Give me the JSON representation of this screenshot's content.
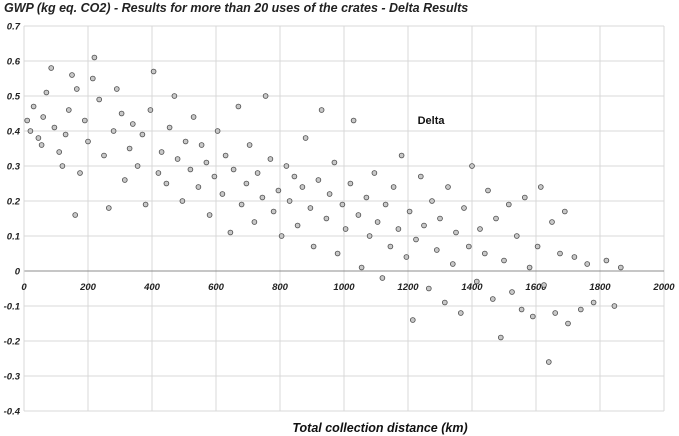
{
  "chart_data": {
    "type": "scatter",
    "title": "GWP (kg eq. CO2)  -  Results for more than 20 uses of the crates - Delta Results",
    "xlabel": "Total collection distance (km)",
    "ylabel": "",
    "xlim": [
      0,
      2000
    ],
    "ylim": [
      -0.4,
      0.7
    ],
    "x_ticks": [
      "0",
      "200",
      "400",
      "600",
      "800",
      "1000",
      "1200",
      "1400",
      "1600",
      "1800",
      "2000"
    ],
    "y_ticks": [
      "0.7",
      "0.6",
      "0.5",
      "0.4",
      "0.3",
      "0.2",
      "0.1",
      "0",
      "-0.1",
      "-0.2",
      "-0.3",
      "-0.4"
    ],
    "grid": true,
    "annotation": {
      "text": "Delta",
      "x": 1230,
      "y": 0.42
    },
    "marker": {
      "shape": "circle",
      "fill": "#c8c8c8",
      "stroke": "#4a4a4a"
    },
    "series": [
      {
        "points": [
          [
            10,
            0.43
          ],
          [
            20,
            0.4
          ],
          [
            30,
            0.47
          ],
          [
            45,
            0.38
          ],
          [
            55,
            0.36
          ],
          [
            60,
            0.44
          ],
          [
            70,
            0.51
          ],
          [
            85,
            0.58
          ],
          [
            95,
            0.41
          ],
          [
            110,
            0.34
          ],
          [
            120,
            0.3
          ],
          [
            130,
            0.39
          ],
          [
            140,
            0.46
          ],
          [
            150,
            0.56
          ],
          [
            160,
            0.16
          ],
          [
            165,
            0.52
          ],
          [
            175,
            0.28
          ],
          [
            190,
            0.43
          ],
          [
            200,
            0.37
          ],
          [
            215,
            0.55
          ],
          [
            220,
            0.61
          ],
          [
            235,
            0.49
          ],
          [
            250,
            0.33
          ],
          [
            265,
            0.18
          ],
          [
            280,
            0.4
          ],
          [
            290,
            0.52
          ],
          [
            305,
            0.45
          ],
          [
            315,
            0.26
          ],
          [
            330,
            0.35
          ],
          [
            340,
            0.42
          ],
          [
            355,
            0.3
          ],
          [
            370,
            0.39
          ],
          [
            380,
            0.19
          ],
          [
            395,
            0.46
          ],
          [
            405,
            0.57
          ],
          [
            420,
            0.28
          ],
          [
            430,
            0.34
          ],
          [
            445,
            0.25
          ],
          [
            455,
            0.41
          ],
          [
            470,
            0.5
          ],
          [
            480,
            0.32
          ],
          [
            495,
            0.2
          ],
          [
            505,
            0.37
          ],
          [
            520,
            0.29
          ],
          [
            530,
            0.44
          ],
          [
            545,
            0.24
          ],
          [
            555,
            0.36
          ],
          [
            570,
            0.31
          ],
          [
            580,
            0.16
          ],
          [
            595,
            0.27
          ],
          [
            605,
            0.4
          ],
          [
            620,
            0.22
          ],
          [
            630,
            0.33
          ],
          [
            645,
            0.11
          ],
          [
            655,
            0.29
          ],
          [
            670,
            0.47
          ],
          [
            680,
            0.19
          ],
          [
            695,
            0.25
          ],
          [
            705,
            0.36
          ],
          [
            720,
            0.14
          ],
          [
            730,
            0.28
          ],
          [
            745,
            0.21
          ],
          [
            755,
            0.5
          ],
          [
            770,
            0.32
          ],
          [
            780,
            0.17
          ],
          [
            795,
            0.23
          ],
          [
            805,
            0.1
          ],
          [
            820,
            0.3
          ],
          [
            830,
            0.2
          ],
          [
            845,
            0.27
          ],
          [
            855,
            0.13
          ],
          [
            870,
            0.24
          ],
          [
            880,
            0.38
          ],
          [
            895,
            0.18
          ],
          [
            905,
            0.07
          ],
          [
            920,
            0.26
          ],
          [
            930,
            0.46
          ],
          [
            945,
            0.15
          ],
          [
            955,
            0.22
          ],
          [
            970,
            0.31
          ],
          [
            980,
            0.05
          ],
          [
            995,
            0.19
          ],
          [
            1005,
            0.12
          ],
          [
            1020,
            0.25
          ],
          [
            1030,
            0.43
          ],
          [
            1045,
            0.16
          ],
          [
            1055,
            0.01
          ],
          [
            1070,
            0.21
          ],
          [
            1080,
            0.1
          ],
          [
            1095,
            0.28
          ],
          [
            1105,
            0.14
          ],
          [
            1120,
            -0.02
          ],
          [
            1130,
            0.19
          ],
          [
            1145,
            0.07
          ],
          [
            1155,
            0.24
          ],
          [
            1170,
            0.12
          ],
          [
            1180,
            0.33
          ],
          [
            1195,
            0.04
          ],
          [
            1205,
            0.17
          ],
          [
            1215,
            -0.14
          ],
          [
            1225,
            0.09
          ],
          [
            1240,
            0.27
          ],
          [
            1250,
            0.13
          ],
          [
            1265,
            -0.05
          ],
          [
            1275,
            0.2
          ],
          [
            1290,
            0.06
          ],
          [
            1300,
            0.15
          ],
          [
            1315,
            -0.09
          ],
          [
            1325,
            0.24
          ],
          [
            1340,
            0.02
          ],
          [
            1350,
            0.11
          ],
          [
            1365,
            -0.12
          ],
          [
            1375,
            0.18
          ],
          [
            1390,
            0.07
          ],
          [
            1400,
            0.3
          ],
          [
            1415,
            -0.03
          ],
          [
            1425,
            0.12
          ],
          [
            1440,
            0.05
          ],
          [
            1450,
            0.23
          ],
          [
            1465,
            -0.08
          ],
          [
            1475,
            0.15
          ],
          [
            1490,
            -0.19
          ],
          [
            1500,
            0.03
          ],
          [
            1515,
            0.19
          ],
          [
            1525,
            -0.06
          ],
          [
            1540,
            0.1
          ],
          [
            1555,
            -0.11
          ],
          [
            1565,
            0.21
          ],
          [
            1580,
            0.01
          ],
          [
            1590,
            -0.13
          ],
          [
            1605,
            0.07
          ],
          [
            1615,
            0.24
          ],
          [
            1625,
            -0.04
          ],
          [
            1640,
            -0.26
          ],
          [
            1650,
            0.14
          ],
          [
            1660,
            -0.12
          ],
          [
            1675,
            0.05
          ],
          [
            1690,
            0.17
          ],
          [
            1700,
            -0.15
          ],
          [
            1720,
            0.04
          ],
          [
            1740,
            -0.11
          ],
          [
            1760,
            0.02
          ],
          [
            1780,
            -0.09
          ],
          [
            1820,
            0.03
          ],
          [
            1845,
            -0.1
          ],
          [
            1865,
            0.01
          ]
        ]
      }
    ]
  }
}
